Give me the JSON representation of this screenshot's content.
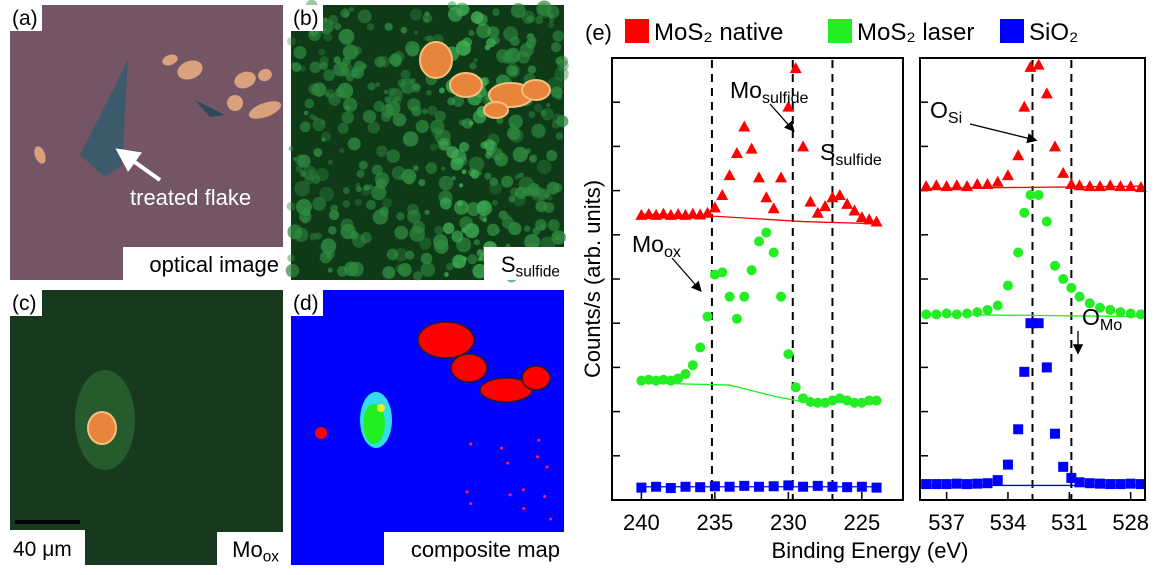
{
  "panels": [
    {
      "label": "(a)",
      "caption": "optical image",
      "annotation": "treated flake"
    },
    {
      "label": "(b)",
      "caption": {
        "text": "S",
        "sub": "sulfide"
      }
    },
    {
      "label": "(c)",
      "caption": {
        "text": "Mo",
        "sub": "ox"
      },
      "scale_bar": "40 μm"
    },
    {
      "label": "(d)",
      "caption": "composite map"
    }
  ],
  "chart_data": {
    "type": "scatter",
    "label": "(e)",
    "xlabel": "Binding Energy (eV)",
    "ylabel": "Counts/s (arb. units)",
    "series": [
      {
        "name": "MoS₂ native",
        "color": "#ff0000",
        "marker": "triangle"
      },
      {
        "name": "MoS₂ laser",
        "color": "#22ee22",
        "marker": "circle"
      },
      {
        "name": "SiO₂",
        "color": "#0000ff",
        "marker": "square"
      }
    ],
    "subplots": [
      {
        "xlim": [
          242,
          222.2
        ],
        "ylim": [
          0,
          10
        ],
        "xticks": [
          240,
          235,
          230,
          225
        ],
        "yticks": [
          1,
          2,
          3,
          4,
          5,
          6,
          7,
          8,
          9
        ],
        "data": [
          {
            "x": [
              240,
              239.5,
              239,
              238.5,
              238,
              237.5,
              237,
              236.5,
              236,
              235.5,
              235,
              234.5,
              234,
              233.5,
              233,
              232.5,
              232,
              231.5,
              231,
              230.5,
              230,
              229.5,
              229,
              228.5,
              228,
              227.5,
              227,
              226.5,
              226,
              225.5,
              225,
              224.5,
              224
            ],
            "values": [
              6.45,
              6.47,
              6.45,
              6.48,
              6.45,
              6.47,
              6.45,
              6.48,
              6.46,
              6.5,
              6.62,
              6.9,
              7.35,
              7.85,
              8.45,
              7.95,
              7.3,
              6.85,
              6.6,
              7.3,
              8.9,
              9.77,
              8.0,
              6.75,
              6.5,
              6.65,
              6.85,
              6.9,
              6.7,
              6.55,
              6.4,
              6.35,
              6.3
            ]
          },
          {
            "x": [
              240,
              239.5,
              239,
              238.5,
              238,
              237.5,
              237,
              236.5,
              236,
              235.5,
              235,
              234.5,
              234,
              233.5,
              233,
              232.5,
              232,
              231.5,
              231,
              230.5,
              230,
              229.5,
              229,
              228.5,
              228,
              227.5,
              227,
              226.5,
              226,
              225.5,
              225,
              224.5,
              224
            ],
            "values": [
              2.7,
              2.72,
              2.7,
              2.72,
              2.7,
              2.75,
              2.85,
              3.05,
              3.45,
              4.15,
              5.1,
              5.15,
              4.6,
              4.1,
              4.6,
              5.2,
              5.85,
              6.05,
              5.6,
              4.6,
              3.3,
              2.55,
              2.3,
              2.22,
              2.2,
              2.2,
              2.25,
              2.3,
              2.25,
              2.2,
              2.2,
              2.25,
              2.25
            ]
          },
          {
            "x": [
              240,
              239,
              238,
              237,
              236,
              235,
              234,
              233,
              232,
              231,
              230,
              229,
              228,
              227,
              226,
              225,
              224
            ],
            "values": [
              0.28,
              0.3,
              0.27,
              0.3,
              0.29,
              0.31,
              0.3,
              0.32,
              0.3,
              0.31,
              0.33,
              0.3,
              0.32,
              0.3,
              0.29,
              0.3,
              0.28
            ]
          }
        ],
        "fits": [
          {
            "x": [
              240,
              235,
              229,
              224
            ],
            "values": [
              6.47,
              6.42,
              6.3,
              6.25
            ]
          },
          {
            "x": [
              240,
              234,
              231,
              229,
              224
            ],
            "values": [
              2.65,
              2.6,
              2.35,
              2.22,
              2.2
            ]
          },
          {
            "x": [
              240,
              224
            ],
            "values": [
              0.3,
              0.3
            ]
          }
        ],
        "vlines": [
          235.2,
          229.7,
          227.0
        ],
        "annotations": [
          {
            "text": "Mo",
            "sub": "sulfide"
          },
          {
            "text": "S",
            "sub": "sulfide"
          },
          {
            "text": "Mo",
            "sub": "ox"
          }
        ]
      },
      {
        "xlim": [
          538.3,
          527.3
        ],
        "ylim": [
          0,
          10
        ],
        "xticks": [
          537,
          534,
          531,
          528
        ],
        "yticks": [
          1,
          2,
          3,
          4,
          5,
          6,
          7,
          8,
          9
        ],
        "data": [
          {
            "x": [
              538,
              537.5,
              537,
              536.5,
              536,
              535.5,
              535,
              534.5,
              534,
              533.5,
              533.2,
              532.9,
              532.5,
              532.1,
              531.7,
              531.3,
              530.9,
              530.5,
              530,
              529.5,
              529,
              528.5,
              528,
              527.5
            ],
            "values": [
              7.1,
              7.12,
              7.1,
              7.12,
              7.1,
              7.15,
              7.15,
              7.2,
              7.35,
              7.8,
              8.9,
              9.8,
              9.85,
              9.2,
              8.0,
              7.4,
              7.15,
              7.12,
              7.1,
              7.1,
              7.12,
              7.1,
              7.1,
              7.08
            ]
          },
          {
            "x": [
              538,
              537.5,
              537,
              536.5,
              536,
              535.5,
              535,
              534.5,
              534,
              533.5,
              533.2,
              532.9,
              532.5,
              532.1,
              531.7,
              531.3,
              530.9,
              530.5,
              530,
              529.5,
              529,
              528.5,
              528,
              527.5
            ],
            "values": [
              4.2,
              4.2,
              4.22,
              4.2,
              4.22,
              4.25,
              4.3,
              4.4,
              4.85,
              5.6,
              6.5,
              6.9,
              6.9,
              6.3,
              5.3,
              5.0,
              4.8,
              4.6,
              4.45,
              4.35,
              4.3,
              4.25,
              4.22,
              4.2
            ]
          },
          {
            "x": [
              538,
              537.5,
              537,
              536.5,
              536,
              535.5,
              535,
              534.5,
              534,
              533.5,
              533.2,
              532.9,
              532.5,
              532.1,
              531.7,
              531.3,
              530.9,
              530.5,
              530,
              529.5,
              529,
              528.5,
              528,
              527.5
            ],
            "values": [
              0.36,
              0.36,
              0.36,
              0.37,
              0.36,
              0.37,
              0.38,
              0.45,
              0.8,
              1.6,
              2.9,
              4.0,
              4.0,
              3.0,
              1.5,
              0.75,
              0.5,
              0.4,
              0.38,
              0.37,
              0.36,
              0.36,
              0.37,
              0.36
            ]
          }
        ],
        "fits": [
          {
            "x": [
              538,
              527.5
            ],
            "values": [
              7.05,
              7.1
            ]
          },
          {
            "x": [
              538,
              527.5
            ],
            "values": [
              4.2,
              4.15
            ]
          },
          {
            "x": [
              538,
              527.5
            ],
            "values": [
              0.33,
              0.33
            ]
          }
        ],
        "vlines": [
          532.8,
          530.9
        ],
        "annotations": [
          {
            "text": "O",
            "sub": "Si"
          },
          {
            "text": "O",
            "sub": "Mo"
          }
        ]
      }
    ]
  }
}
